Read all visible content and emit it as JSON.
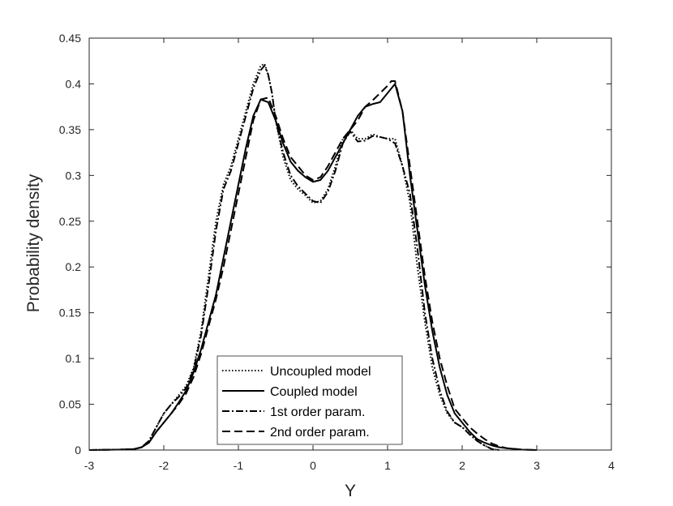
{
  "chart_data": {
    "type": "line",
    "title": "",
    "xlabel": "Y",
    "ylabel": "Probability density",
    "xlim": [
      -3,
      4
    ],
    "ylim": [
      0,
      0.45
    ],
    "xticks": [
      "-3",
      "-2",
      "-1",
      "0",
      "1",
      "2",
      "3",
      "4"
    ],
    "yticks": [
      "0",
      "0.05",
      "0.1",
      "0.15",
      "0.2",
      "0.25",
      "0.3",
      "0.35",
      "0.4",
      "0.45"
    ],
    "grid": false,
    "legend_position": "bottom-center",
    "series": [
      {
        "name": "Uncoupled model",
        "style": "dotted",
        "color": "#000000",
        "x": [
          -3.0,
          -2.6,
          -2.4,
          -2.3,
          -2.2,
          -2.1,
          -2.0,
          -1.9,
          -1.8,
          -1.7,
          -1.6,
          -1.5,
          -1.4,
          -1.3,
          -1.2,
          -1.1,
          -1.0,
          -0.9,
          -0.8,
          -0.7,
          -0.65,
          -0.6,
          -0.55,
          -0.5,
          -0.4,
          -0.3,
          -0.2,
          -0.1,
          0.0,
          0.1,
          0.2,
          0.3,
          0.4,
          0.5,
          0.6,
          0.7,
          0.8,
          0.9,
          1.0,
          1.1,
          1.2,
          1.3,
          1.4,
          1.5,
          1.6,
          1.7,
          1.8,
          1.9,
          2.0,
          2.1,
          2.2,
          2.3,
          2.4,
          2.5
        ],
        "y": [
          0.0,
          0.0005,
          0.001,
          0.003,
          0.01,
          0.025,
          0.04,
          0.05,
          0.06,
          0.07,
          0.09,
          0.13,
          0.19,
          0.25,
          0.29,
          0.31,
          0.34,
          0.37,
          0.4,
          0.42,
          0.422,
          0.41,
          0.39,
          0.36,
          0.32,
          0.295,
          0.285,
          0.278,
          0.27,
          0.272,
          0.285,
          0.31,
          0.34,
          0.35,
          0.34,
          0.34,
          0.345,
          0.342,
          0.34,
          0.34,
          0.31,
          0.27,
          0.2,
          0.14,
          0.09,
          0.06,
          0.04,
          0.03,
          0.025,
          0.018,
          0.01,
          0.005,
          0.001,
          0.0
        ]
      },
      {
        "name": "Coupled model",
        "style": "solid",
        "color": "#000000",
        "x": [
          -3.0,
          -2.6,
          -2.4,
          -2.3,
          -2.2,
          -2.1,
          -2.0,
          -1.9,
          -1.8,
          -1.7,
          -1.6,
          -1.5,
          -1.4,
          -1.3,
          -1.2,
          -1.1,
          -1.0,
          -0.9,
          -0.8,
          -0.7,
          -0.6,
          -0.5,
          -0.4,
          -0.3,
          -0.2,
          -0.1,
          0.0,
          0.1,
          0.2,
          0.3,
          0.4,
          0.5,
          0.6,
          0.7,
          0.8,
          0.9,
          1.0,
          1.05,
          1.1,
          1.2,
          1.3,
          1.4,
          1.5,
          1.6,
          1.7,
          1.8,
          1.9,
          2.0,
          2.1,
          2.2,
          2.3,
          2.4,
          2.5,
          2.6,
          2.8,
          3.0
        ],
        "y": [
          0.0,
          0.0005,
          0.001,
          0.003,
          0.008,
          0.02,
          0.03,
          0.04,
          0.052,
          0.065,
          0.085,
          0.11,
          0.14,
          0.17,
          0.21,
          0.25,
          0.29,
          0.33,
          0.365,
          0.383,
          0.38,
          0.36,
          0.335,
          0.315,
          0.305,
          0.298,
          0.293,
          0.295,
          0.305,
          0.32,
          0.335,
          0.35,
          0.365,
          0.375,
          0.378,
          0.38,
          0.39,
          0.395,
          0.4,
          0.37,
          0.3,
          0.24,
          0.18,
          0.13,
          0.09,
          0.06,
          0.04,
          0.03,
          0.02,
          0.012,
          0.008,
          0.005,
          0.003,
          0.002,
          0.0005,
          0.0
        ]
      },
      {
        "name": "1st order param.",
        "style": "dashdot",
        "color": "#000000",
        "x": [
          -3.0,
          -2.6,
          -2.4,
          -2.3,
          -2.2,
          -2.1,
          -2.0,
          -1.9,
          -1.8,
          -1.7,
          -1.6,
          -1.5,
          -1.4,
          -1.3,
          -1.2,
          -1.1,
          -1.0,
          -0.9,
          -0.8,
          -0.7,
          -0.65,
          -0.6,
          -0.55,
          -0.5,
          -0.4,
          -0.3,
          -0.2,
          -0.1,
          0.0,
          0.1,
          0.2,
          0.3,
          0.4,
          0.5,
          0.6,
          0.7,
          0.8,
          0.9,
          1.0,
          1.1,
          1.2,
          1.3,
          1.4,
          1.5,
          1.6,
          1.7,
          1.8,
          1.9,
          2.0,
          2.1,
          2.2,
          2.3,
          2.4,
          2.5
        ],
        "y": [
          0.0,
          0.0005,
          0.001,
          0.003,
          0.01,
          0.025,
          0.04,
          0.05,
          0.058,
          0.068,
          0.088,
          0.125,
          0.18,
          0.24,
          0.285,
          0.305,
          0.335,
          0.365,
          0.395,
          0.415,
          0.42,
          0.41,
          0.39,
          0.36,
          0.325,
          0.3,
          0.288,
          0.28,
          0.272,
          0.27,
          0.282,
          0.305,
          0.335,
          0.348,
          0.337,
          0.338,
          0.343,
          0.342,
          0.34,
          0.335,
          0.31,
          0.28,
          0.22,
          0.15,
          0.1,
          0.065,
          0.042,
          0.03,
          0.025,
          0.017,
          0.01,
          0.005,
          0.001,
          0.0
        ]
      },
      {
        "name": "2nd order param.",
        "style": "dashed",
        "color": "#000000",
        "x": [
          -3.0,
          -2.6,
          -2.4,
          -2.3,
          -2.2,
          -2.1,
          -2.0,
          -1.9,
          -1.8,
          -1.7,
          -1.6,
          -1.5,
          -1.4,
          -1.3,
          -1.2,
          -1.1,
          -1.0,
          -0.9,
          -0.8,
          -0.7,
          -0.6,
          -0.5,
          -0.4,
          -0.3,
          -0.2,
          -0.1,
          0.0,
          0.1,
          0.2,
          0.3,
          0.4,
          0.5,
          0.6,
          0.7,
          0.8,
          0.9,
          1.0,
          1.05,
          1.1,
          1.2,
          1.3,
          1.4,
          1.5,
          1.6,
          1.7,
          1.8,
          1.9,
          2.0,
          2.1,
          2.2,
          2.3,
          2.4,
          2.5,
          2.6,
          2.8,
          3.0
        ],
        "y": [
          0.0,
          0.0005,
          0.001,
          0.003,
          0.008,
          0.02,
          0.03,
          0.04,
          0.05,
          0.062,
          0.08,
          0.105,
          0.135,
          0.165,
          0.2,
          0.24,
          0.28,
          0.32,
          0.36,
          0.383,
          0.385,
          0.365,
          0.34,
          0.32,
          0.31,
          0.3,
          0.295,
          0.298,
          0.31,
          0.325,
          0.34,
          0.35,
          0.36,
          0.375,
          0.382,
          0.39,
          0.398,
          0.403,
          0.403,
          0.37,
          0.31,
          0.25,
          0.19,
          0.14,
          0.1,
          0.07,
          0.045,
          0.035,
          0.025,
          0.018,
          0.012,
          0.007,
          0.004,
          0.002,
          0.0005,
          0.0
        ]
      }
    ]
  }
}
